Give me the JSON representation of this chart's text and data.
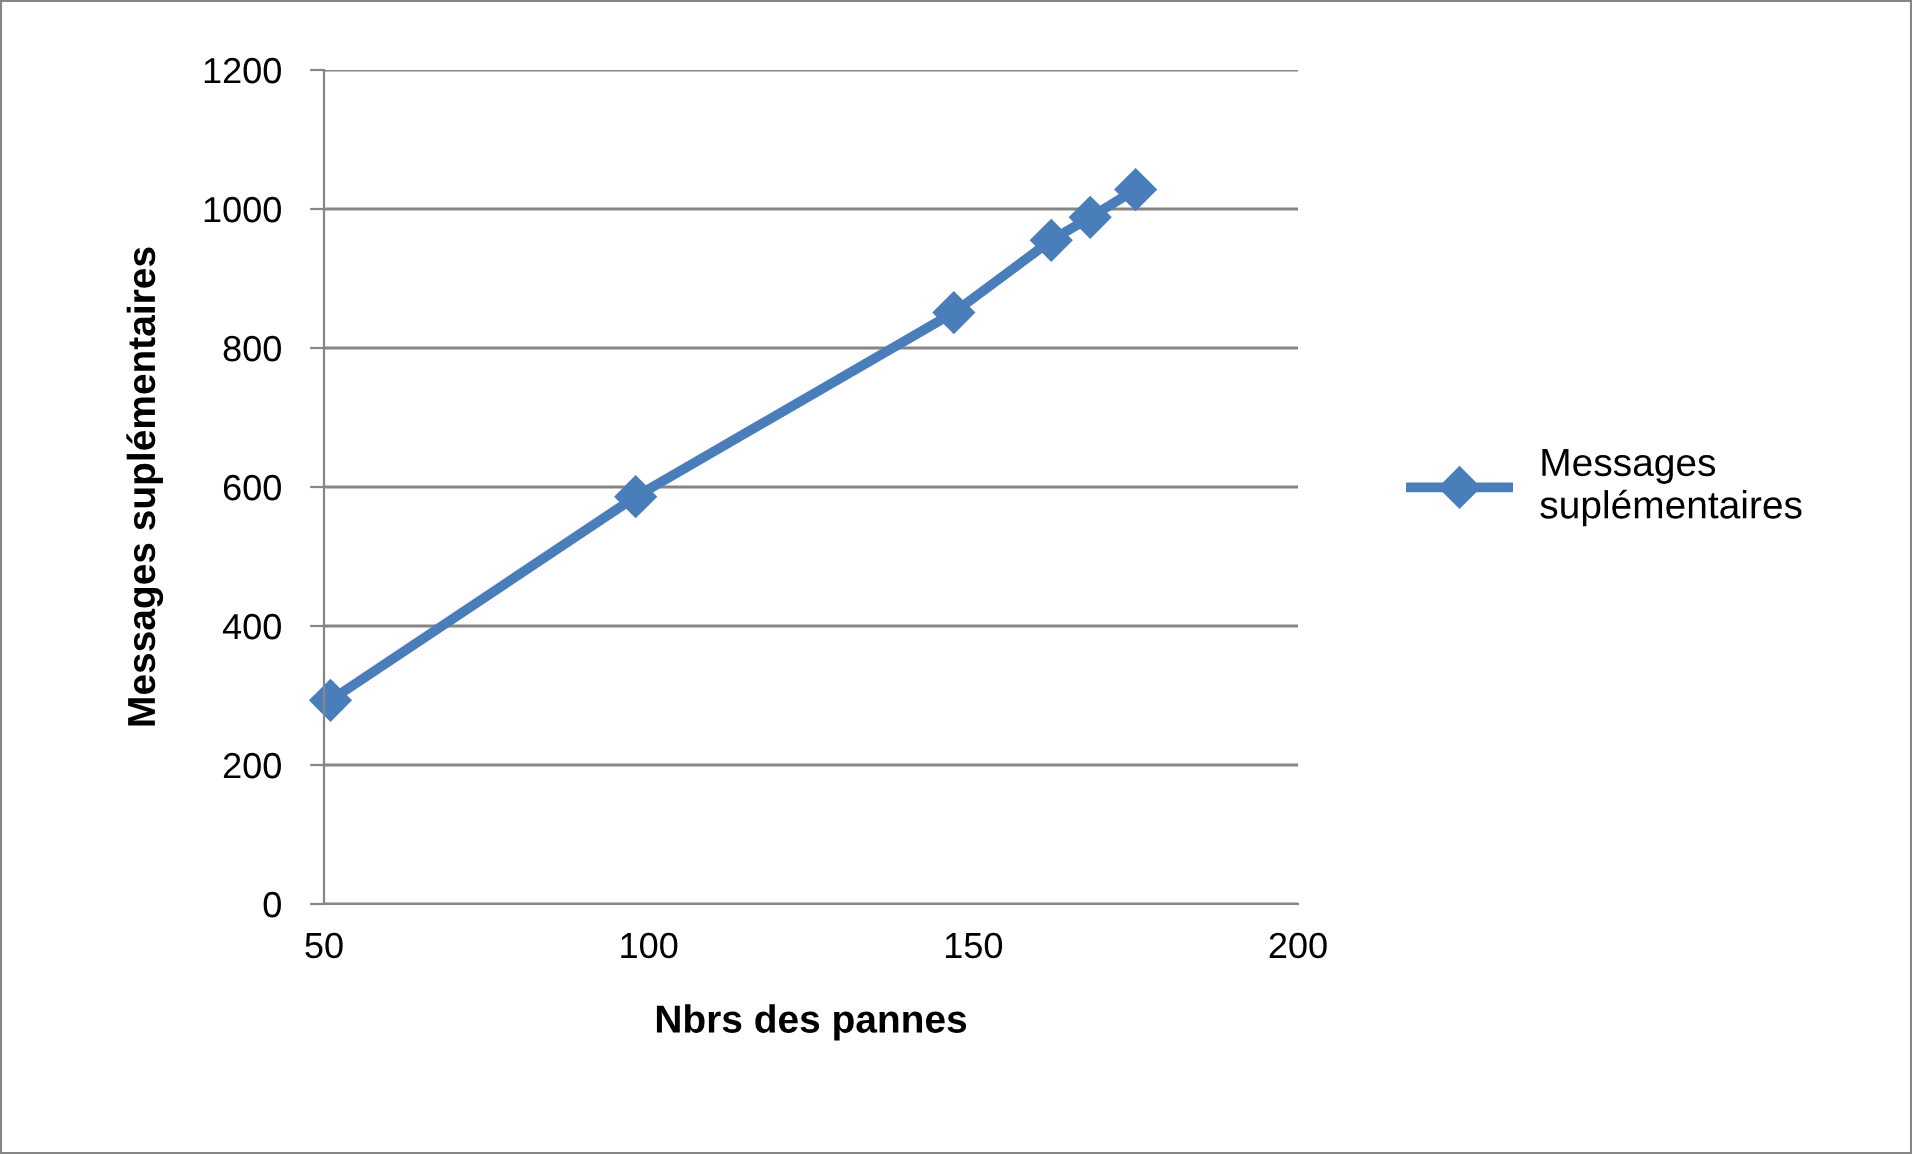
{
  "chart_data": {
    "type": "line",
    "xlabel": "Nbrs des pannes",
    "ylabel": "Messages suplémentaires",
    "x": [
      51,
      98,
      147,
      162,
      168,
      175
    ],
    "series": [
      {
        "name": "Messages suplémentaires",
        "color": "#4a7ebb",
        "values": [
          293,
          586,
          851,
          955,
          988,
          1028
        ]
      }
    ],
    "xlim": [
      50,
      200
    ],
    "xticks": [
      50,
      100,
      150,
      200
    ],
    "ylim": [
      0,
      1200
    ],
    "yticks": [
      0,
      200,
      400,
      600,
      800,
      1000,
      1200
    ],
    "grid": "y",
    "legend": "right",
    "marker": "diamond",
    "line_style": "solid"
  }
}
